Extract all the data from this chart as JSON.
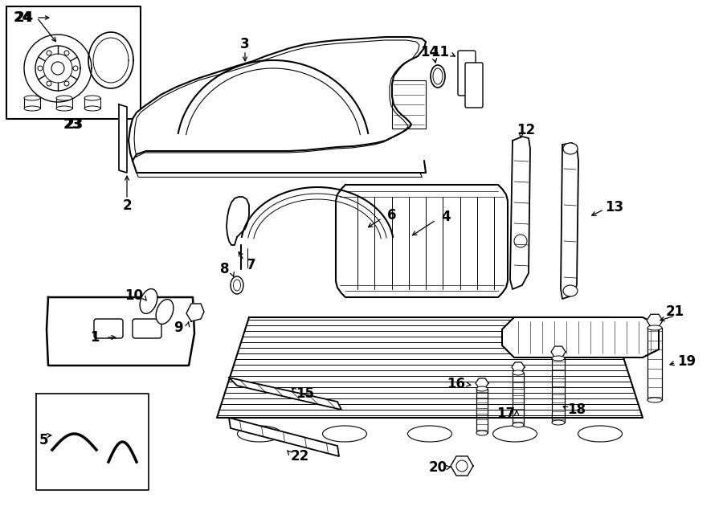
{
  "bg": "#ffffff",
  "lc": "#000000",
  "fw": 9.0,
  "fh": 6.61,
  "dpi": 100
}
